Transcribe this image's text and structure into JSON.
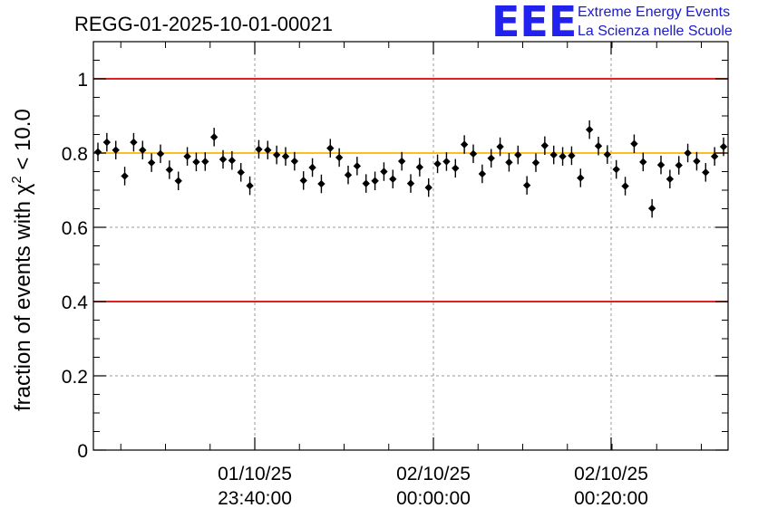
{
  "logo": {
    "mark": "EEE",
    "line1": "Extreme Energy Events",
    "line2": "La Scienza nelle Scuole",
    "color": "#1a1aee"
  },
  "chart_data": {
    "type": "scatter",
    "title": "REGG-01-2025-10-01-00021",
    "xlabel": "",
    "ylabel": "fraction of events with χ² < 10.0",
    "ylabel_parts": {
      "prefix": "fraction of events with ",
      "chi": "χ",
      "sup": "2",
      "suffix": " < 10.0"
    },
    "x_ticks": [
      {
        "date": "01/10/25",
        "time": "23:40:00"
      },
      {
        "date": "02/10/25",
        "time": "00:00:00"
      },
      {
        "date": "02/10/25",
        "time": "00:20:00"
      }
    ],
    "y_ticks": [
      "0",
      "0.2",
      "0.4",
      "0.6",
      "0.8",
      "1"
    ],
    "ylim": [
      0,
      1.1
    ],
    "grid": true,
    "reference_lines": [
      {
        "y": 1.0,
        "color": "#dd0000"
      },
      {
        "y": 0.4,
        "color": "#dd0000"
      },
      {
        "y": 0.8,
        "color": "#ffb400"
      }
    ],
    "marker_color": "#000000",
    "values": [
      0.803,
      0.829,
      0.808,
      0.738,
      0.829,
      0.808,
      0.774,
      0.798,
      0.755,
      0.725,
      0.791,
      0.776,
      0.777,
      0.843,
      0.783,
      0.78,
      0.748,
      0.712,
      0.81,
      0.808,
      0.795,
      0.791,
      0.778,
      0.726,
      0.761,
      0.717,
      0.813,
      0.788,
      0.741,
      0.765,
      0.718,
      0.725,
      0.75,
      0.73,
      0.778,
      0.718,
      0.762,
      0.707,
      0.771,
      0.777,
      0.759,
      0.823,
      0.798,
      0.744,
      0.786,
      0.817,
      0.775,
      0.795,
      0.713,
      0.774,
      0.82,
      0.795,
      0.791,
      0.793,
      0.733,
      0.863,
      0.819,
      0.796,
      0.756,
      0.711,
      0.825,
      0.776,
      0.651,
      0.768,
      0.73,
      0.767,
      0.8,
      0.778,
      0.748,
      0.791,
      0.817
    ],
    "errors": 0.025
  }
}
